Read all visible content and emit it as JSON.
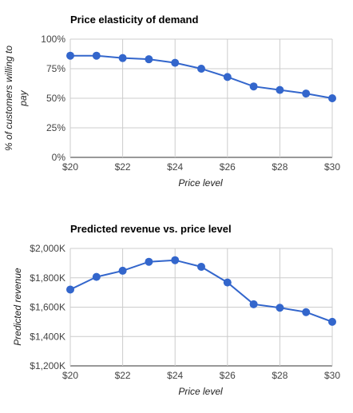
{
  "chart_data": [
    {
      "type": "line",
      "title": "Price elasticity of demand",
      "xlabel": "Price level",
      "ylabel": "% of customers willing to pay",
      "x": [
        20,
        21,
        22,
        23,
        24,
        25,
        26,
        27,
        28,
        29,
        30
      ],
      "x_ticks": [
        "$20",
        "$22",
        "$24",
        "$26",
        "$28",
        "$30"
      ],
      "y_ticks": [
        "0%",
        "25%",
        "50%",
        "75%",
        "100%"
      ],
      "ylim": [
        0,
        100
      ],
      "grid": true,
      "color": "#3366cc",
      "series": [
        {
          "values": [
            86,
            86,
            84,
            83,
            80,
            75,
            68,
            60,
            57,
            54,
            50
          ]
        }
      ]
    },
    {
      "type": "line",
      "title": "Predicted revenue vs. price level",
      "xlabel": "Price level",
      "ylabel": "Predicted revenue",
      "x": [
        20,
        21,
        22,
        23,
        24,
        25,
        26,
        27,
        28,
        29,
        30
      ],
      "x_ticks": [
        "$20",
        "$22",
        "$24",
        "$26",
        "$28",
        "$30"
      ],
      "y_ticks": [
        "$1,200K",
        "$1,400K",
        "$1,600K",
        "$1,800K",
        "$2,000K"
      ],
      "ylim": [
        1200,
        2000
      ],
      "grid": true,
      "color": "#3366cc",
      "series": [
        {
          "values": [
            1720,
            1806,
            1848,
            1909,
            1920,
            1875,
            1768,
            1620,
            1596,
            1566,
            1500
          ]
        }
      ]
    }
  ]
}
